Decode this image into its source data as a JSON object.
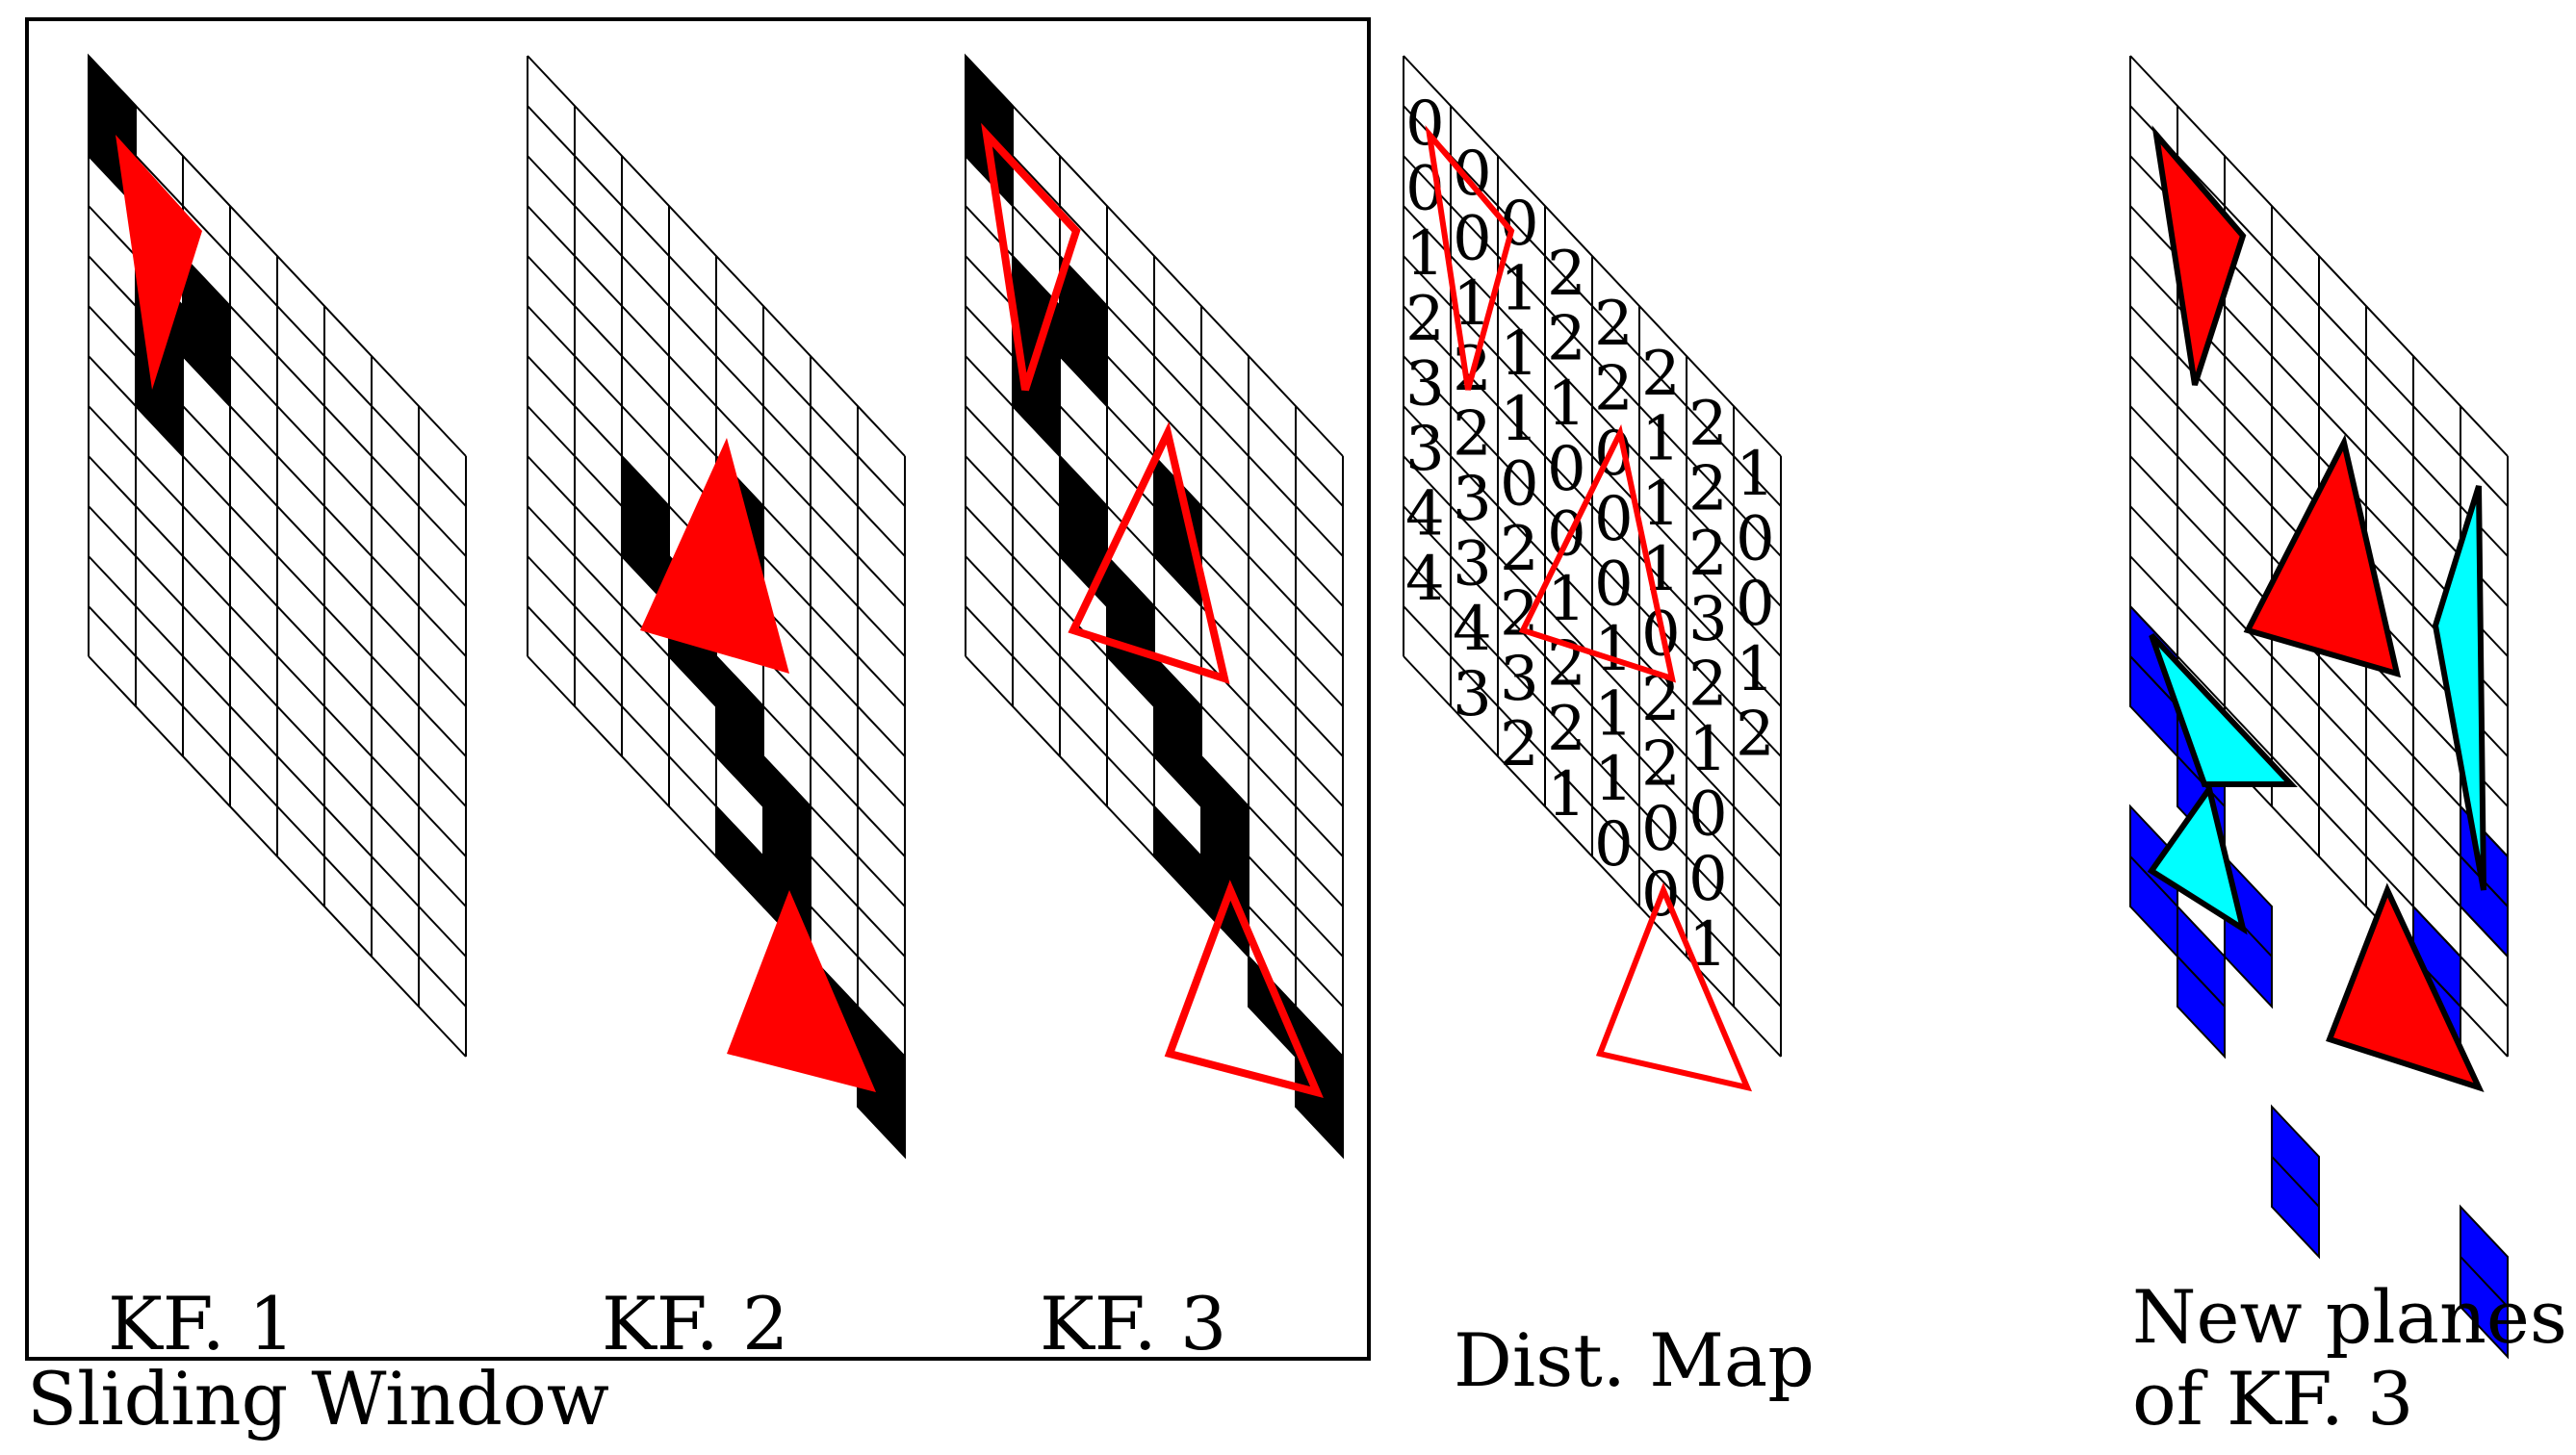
{
  "labels": {
    "kf1": "KF. 1",
    "kf2": "KF. 2",
    "kf3": "KF. 3",
    "sliding_window": "Sliding Window",
    "dist_map": "Dist. Map",
    "new_planes_line1": "New planes",
    "new_planes_line2": "of KF. 3"
  },
  "grid": {
    "columns": 8,
    "rows": 12
  },
  "colors": {
    "grid_line": "#000000",
    "occupied_cell": "#000000",
    "plane": "#ff0000",
    "plane_new": "#00ffff",
    "cell_new": "#0000ff"
  },
  "keyframes": [
    {
      "id": "kf1",
      "occupied_cells": [
        [
          0,
          0
        ],
        [
          0,
          1
        ],
        [
          2,
          2
        ],
        [
          2,
          3
        ],
        [
          1,
          3
        ],
        [
          1,
          4
        ],
        [
          1,
          5
        ]
      ]
    },
    {
      "id": "kf2",
      "occupied_cells": [
        [
          4,
          4
        ],
        [
          4,
          5
        ],
        [
          2,
          6
        ],
        [
          2,
          7
        ],
        [
          3,
          7
        ],
        [
          3,
          8
        ],
        [
          4,
          8
        ],
        [
          4,
          9
        ],
        [
          5,
          9
        ],
        [
          5,
          10
        ],
        [
          5,
          11
        ],
        [
          4,
          11
        ],
        [
          6,
          12
        ],
        [
          7,
          12
        ],
        [
          7,
          13
        ]
      ]
    },
    {
      "id": "kf3",
      "occupied_cells": [
        [
          0,
          0
        ],
        [
          0,
          1
        ],
        [
          2,
          2
        ],
        [
          2,
          3
        ],
        [
          1,
          3
        ],
        [
          1,
          4
        ],
        [
          1,
          5
        ],
        [
          4,
          4
        ],
        [
          4,
          5
        ],
        [
          2,
          6
        ],
        [
          2,
          7
        ],
        [
          3,
          7
        ],
        [
          3,
          8
        ],
        [
          4,
          8
        ],
        [
          4,
          9
        ],
        [
          5,
          9
        ],
        [
          5,
          10
        ],
        [
          5,
          11
        ],
        [
          4,
          11
        ],
        [
          6,
          12
        ],
        [
          7,
          12
        ],
        [
          7,
          13
        ]
      ]
    }
  ],
  "distance_map": {
    "values": [
      [
        "0",
        "0",
        "1",
        "2",
        "3",
        "3",
        "4",
        "4"
      ],
      [
        "0",
        "0",
        "1",
        "2",
        "2",
        "3",
        "3",
        "4",
        "3"
      ],
      [
        "0",
        "1",
        "1",
        "1",
        "0",
        "2",
        "2",
        "3",
        "2"
      ],
      [
        "2",
        "2",
        "1",
        "0",
        "0",
        "1",
        "2",
        "2",
        "1"
      ],
      [
        "2",
        "2",
        "0",
        "0",
        "0",
        "1",
        "1",
        "1",
        "0"
      ],
      [
        "2",
        "1",
        "1",
        "1",
        "0",
        "2",
        "2",
        "0",
        "0"
      ],
      [
        "2",
        "2",
        "2",
        "3",
        "2",
        "1",
        "0",
        "0",
        "1"
      ],
      [
        "1",
        "0",
        "0",
        "1",
        "2"
      ]
    ]
  },
  "new_planes": {
    "blue_cells": [
      [
        7,
        8
      ],
      [
        7,
        9
      ],
      [
        6,
        11
      ],
      [
        6,
        12
      ],
      [
        0,
        11
      ],
      [
        0,
        12
      ],
      [
        1,
        12
      ],
      [
        1,
        13
      ],
      [
        2,
        14
      ],
      [
        2,
        15
      ],
      [
        0,
        15
      ],
      [
        0,
        16
      ],
      [
        1,
        16
      ],
      [
        1,
        17
      ],
      [
        3,
        18
      ],
      [
        3,
        19
      ],
      [
        7,
        16
      ],
      [
        7,
        17
      ]
    ]
  }
}
